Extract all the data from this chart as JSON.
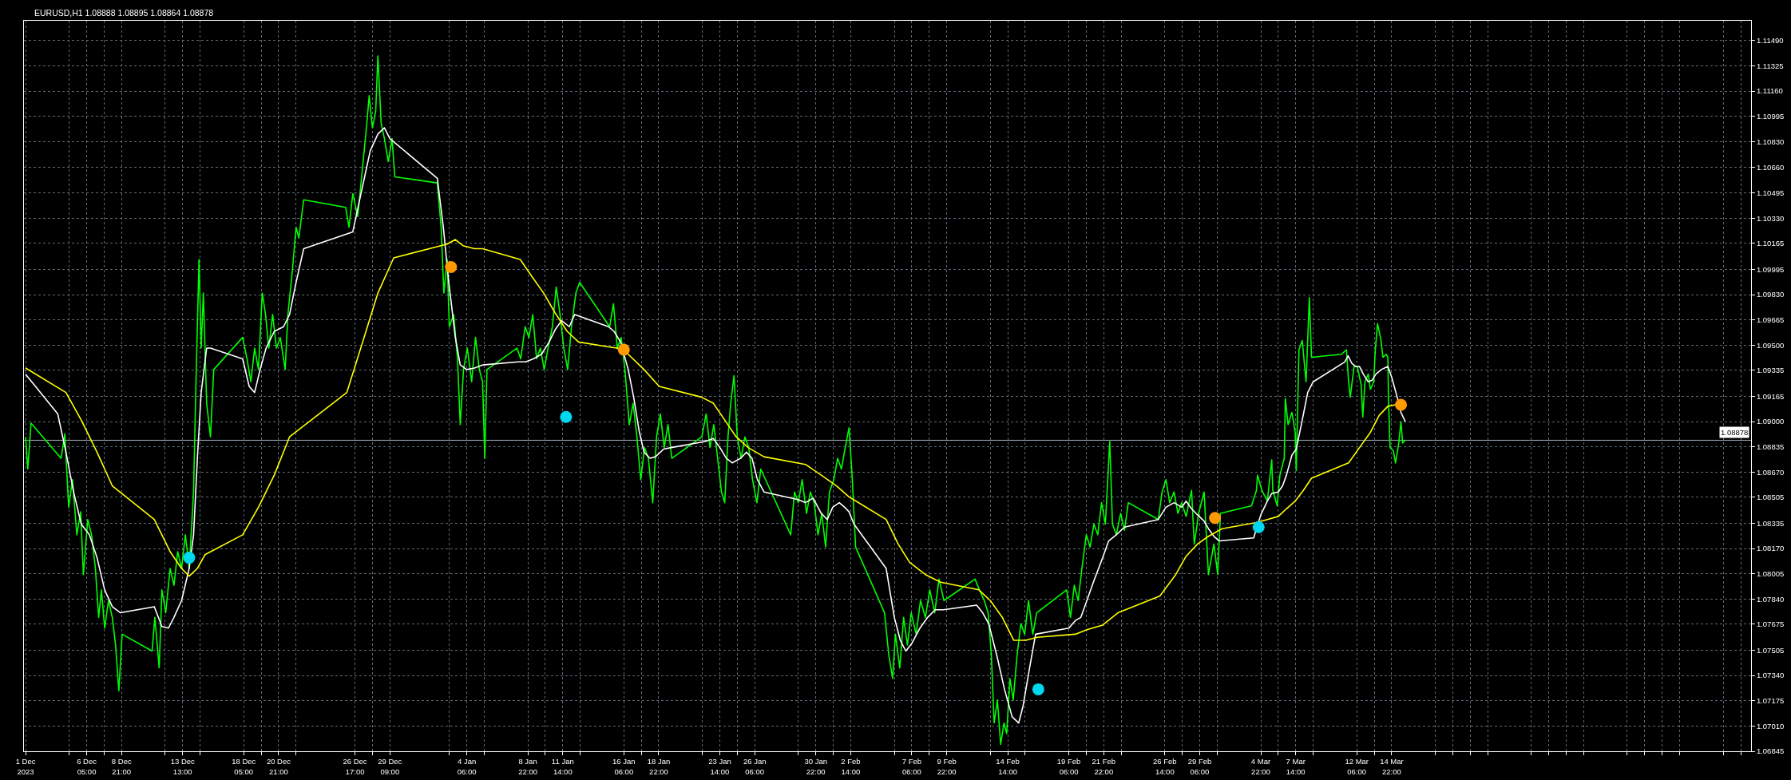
{
  "chart_data": {
    "type": "line",
    "title": "EURUSD,H1 1.08888 1.08895 1.08864 1.08878",
    "xlim": [
      "2023-12-01T10:00",
      "2024-04-11T09:00"
    ],
    "xticks": [
      {
        "value": "2023-12-01T13:00",
        "label": "1 Dec 2023"
      },
      {
        "value": "2023-12-04T21:00",
        "label": null
      },
      {
        "value": "2023-12-06T05:00",
        "label": "6 Dec 05:00"
      },
      {
        "value": "2023-12-07T13:00",
        "label": null
      },
      {
        "value": "2023-12-08T21:00",
        "label": "8 Dec 21:00"
      },
      {
        "value": "2023-12-12T05:00",
        "label": null
      },
      {
        "value": "2023-12-13T13:00",
        "label": "13 Dec 13:00"
      },
      {
        "value": "2023-12-14T21:00",
        "label": null
      },
      {
        "value": "2023-12-18T05:00",
        "label": "18 Dec 05:00"
      },
      {
        "value": "2023-12-19T13:00",
        "label": null
      },
      {
        "value": "2023-12-20T21:00",
        "label": "20 Dec 21:00"
      },
      {
        "value": "2023-12-22T05:00",
        "label": null
      },
      {
        "value": "2023-12-26T17:00",
        "label": "26 Dec 17:00"
      },
      {
        "value": "2023-12-28T01:00",
        "label": null
      },
      {
        "value": "2023-12-29T09:00",
        "label": "29 Dec 09:00"
      },
      {
        "value": "2024-01-02T22:00",
        "label": null
      },
      {
        "value": "2024-01-04T06:00",
        "label": "4 Jan 06:00"
      },
      {
        "value": "2024-01-05T14:00",
        "label": null
      },
      {
        "value": "2024-01-08T22:00",
        "label": "8 Jan 22:00"
      },
      {
        "value": "2024-01-10T06:00",
        "label": null
      },
      {
        "value": "2024-01-11T14:00",
        "label": "11 Jan 14:00"
      },
      {
        "value": "2024-01-12T22:00",
        "label": null
      },
      {
        "value": "2024-01-16T06:00",
        "label": "16 Jan 06:00"
      },
      {
        "value": "2024-01-17T14:00",
        "label": null
      },
      {
        "value": "2024-01-18T22:00",
        "label": "18 Jan 22:00"
      },
      {
        "value": "2024-01-22T06:00",
        "label": null
      },
      {
        "value": "2024-01-23T14:00",
        "label": "23 Jan 14:00"
      },
      {
        "value": "2024-01-24T22:00",
        "label": null
      },
      {
        "value": "2024-01-26T06:00",
        "label": "26 Jan 06:00"
      },
      {
        "value": "2024-01-29T14:00",
        "label": null
      },
      {
        "value": "2024-01-30T22:00",
        "label": "30 Jan 22:00"
      },
      {
        "value": "2024-02-01T06:00",
        "label": null
      },
      {
        "value": "2024-02-02T14:00",
        "label": "2 Feb 14:00"
      },
      {
        "value": "2024-02-05T22:00",
        "label": null
      },
      {
        "value": "2024-02-07T06:00",
        "label": "7 Feb 06:00"
      },
      {
        "value": "2024-02-08T14:00",
        "label": null
      },
      {
        "value": "2024-02-09T22:00",
        "label": "9 Feb 22:00"
      },
      {
        "value": "2024-02-13T06:00",
        "label": null
      },
      {
        "value": "2024-02-14T14:00",
        "label": "14 Feb 14:00"
      },
      {
        "value": "2024-02-15T22:00",
        "label": null
      },
      {
        "value": "2024-02-19T06:00",
        "label": "19 Feb 06:00"
      },
      {
        "value": "2024-02-20T14:00",
        "label": null
      },
      {
        "value": "2024-02-21T22:00",
        "label": "21 Feb 22:00"
      },
      {
        "value": "2024-02-23T06:00",
        "label": null
      },
      {
        "value": "2024-02-26T14:00",
        "label": "26 Feb 14:00"
      },
      {
        "value": "2024-02-27T22:00",
        "label": null
      },
      {
        "value": "2024-02-29T06:00",
        "label": "29 Feb 06:00"
      },
      {
        "value": "2024-03-01T14:00",
        "label": null
      },
      {
        "value": "2024-03-04T22:00",
        "label": "4 Mar 22:00"
      },
      {
        "value": "2024-03-06T06:00",
        "label": null
      },
      {
        "value": "2024-03-07T14:00",
        "label": "7 Mar 14:00"
      },
      {
        "value": "2024-03-08T22:00",
        "label": null
      },
      {
        "value": "2024-03-12T06:00",
        "label": "12 Mar 06:00"
      },
      {
        "value": "2024-03-13T14:00",
        "label": null
      },
      {
        "value": "2024-03-14T22:00",
        "label": "14 Mar 22:00"
      },
      {
        "value": "2024-03-18T06:00",
        "label": null
      },
      {
        "value": "2024-03-19T14:00",
        "label": null
      },
      {
        "value": "2024-03-20T22:00",
        "label": null
      },
      {
        "value": "2024-03-22T06:00",
        "label": null
      },
      {
        "value": "2024-03-25T14:00",
        "label": null
      },
      {
        "value": "2024-03-26T22:00",
        "label": null
      },
      {
        "value": "2024-03-28T06:00",
        "label": null
      },
      {
        "value": "2024-03-29T14:00",
        "label": null
      },
      {
        "value": "2024-04-01T22:00",
        "label": null
      },
      {
        "value": "2024-04-03T06:00",
        "label": null
      },
      {
        "value": "2024-04-04T14:00",
        "label": null
      },
      {
        "value": "2024-04-05T22:00",
        "label": null
      },
      {
        "value": "2024-04-09T06:00",
        "label": null
      },
      {
        "value": "2024-04-10T14:00",
        "label": null
      }
    ],
    "ylim": [
      1.06845,
      1.1162
    ],
    "yticks": [
      {
        "value": 1.06845,
        "label": "1.06845"
      },
      {
        "value": 1.0701,
        "label": "1.07010"
      },
      {
        "value": 1.07175,
        "label": "1.07175"
      },
      {
        "value": 1.0734,
        "label": "1.07340"
      },
      {
        "value": 1.07505,
        "label": "1.07505"
      },
      {
        "value": 1.07675,
        "label": "1.07675"
      },
      {
        "value": 1.0784,
        "label": "1.07840"
      },
      {
        "value": 1.08005,
        "label": "1.08005"
      },
      {
        "value": 1.0817,
        "label": "1.08170"
      },
      {
        "value": 1.08335,
        "label": "1.08335"
      },
      {
        "value": 1.08505,
        "label": "1.08505"
      },
      {
        "value": 1.0867,
        "label": "1.08670"
      },
      {
        "value": 1.08835,
        "label": "1.08835"
      },
      {
        "value": 1.09,
        "label": "1.09000"
      },
      {
        "value": 1.09165,
        "label": "1.09165"
      },
      {
        "value": 1.09335,
        "label": "1.09335"
      },
      {
        "value": 1.095,
        "label": "1.09500"
      },
      {
        "value": 1.09665,
        "label": "1.09665"
      },
      {
        "value": 1.0983,
        "label": "1.09830"
      },
      {
        "value": 1.09995,
        "label": "1.09995"
      },
      {
        "value": 1.10165,
        "label": "1.10165"
      },
      {
        "value": 1.1033,
        "label": "1.10330"
      },
      {
        "value": 1.10495,
        "label": "1.10495"
      },
      {
        "value": 1.1066,
        "label": "1.10660"
      },
      {
        "value": 1.1083,
        "label": "1.10830"
      },
      {
        "value": 1.10995,
        "label": "1.10995"
      },
      {
        "value": 1.1116,
        "label": "1.11160"
      },
      {
        "value": 1.11325,
        "label": "1.11325"
      },
      {
        "value": 1.1149,
        "label": "1.11490"
      }
    ],
    "grid": true,
    "ref_lines": [
      {
        "axis": "y",
        "value": 1.08878,
        "label": "1.08878",
        "color": "#a3b1c2"
      }
    ],
    "series": [
      {
        "color": "#00ff00",
        "x": [
          "2023-12-01T13:00",
          "2023-12-01T17:00",
          "2023-12-01T23:00",
          "2023-12-04T06:00",
          "2023-12-04T13:00",
          "2023-12-04T20:00",
          "2023-12-05T03:00",
          "2023-12-05T11:00",
          "2023-12-05T18:00",
          "2023-12-05T23:00",
          "2023-12-06T07:00",
          "2023-12-06T14:00",
          "2023-12-06T21:00",
          "2023-12-07T03:00",
          "2023-12-07T08:00",
          "2023-12-07T14:00",
          "2023-12-07T21:00",
          "2023-12-08T04:00",
          "2023-12-08T10:00",
          "2023-12-08T16:00",
          "2023-12-08T22:00",
          "2023-12-11T05:00",
          "2023-12-11T10:00",
          "2023-12-11T18:00",
          "2023-12-11T23:00",
          "2023-12-12T06:00",
          "2023-12-12T14:00",
          "2023-12-12T21:00",
          "2023-12-13T04:00",
          "2023-12-13T11:00",
          "2023-12-13T18:00",
          "2023-12-14T01:00",
          "2023-12-14T09:00",
          "2023-12-14T13:00",
          "2023-12-14T19:00",
          "2023-12-14T23:00",
          "2023-12-15T03:00",
          "2023-12-15T09:00",
          "2023-12-15T16:00",
          "2023-12-15T22:00",
          "2023-12-18T03:00",
          "2023-12-18T11:00",
          "2023-12-18T18:00",
          "2023-12-19T01:00",
          "2023-12-19T08:00",
          "2023-12-19T15:00",
          "2023-12-19T21:00",
          "2023-12-20T03:00",
          "2023-12-20T10:00",
          "2023-12-20T17:00",
          "2023-12-21T00:00",
          "2023-12-21T09:00",
          "2023-12-21T14:00",
          "2023-12-21T22:00",
          "2023-12-22T05:00",
          "2023-12-22T10:00",
          "2023-12-22T19:00",
          "2023-12-26T00:00",
          "2023-12-26T06:00",
          "2023-12-26T13:00",
          "2023-12-26T22:00",
          "2023-12-27T06:00",
          "2023-12-27T14:00",
          "2023-12-27T19:00",
          "2023-12-28T01:00",
          "2023-12-28T07:00",
          "2023-12-28T11:00",
          "2023-12-28T17:00",
          "2023-12-28T23:00",
          "2023-12-29T06:00",
          "2023-12-29T13:00",
          "2023-12-29T18:00",
          "2024-01-02T00:00",
          "2024-01-02T07:00",
          "2024-01-02T12:00",
          "2024-01-02T18:00",
          "2024-01-02T22:00",
          "2024-01-03T06:00",
          "2024-01-03T13:00",
          "2024-01-03T18:00",
          "2024-01-04T00:00",
          "2024-01-04T07:00",
          "2024-01-04T15:00",
          "2024-01-04T22:00",
          "2024-01-05T05:00",
          "2024-01-05T11:00",
          "2024-01-05T15:00",
          "2024-01-05T19:00",
          "2024-01-08T02:00",
          "2024-01-08T09:00",
          "2024-01-08T17:00",
          "2024-01-09T00:00",
          "2024-01-09T07:00",
          "2024-01-09T14:00",
          "2024-01-09T21:00",
          "2024-01-10T04:00",
          "2024-01-10T11:00",
          "2024-01-10T19:00",
          "2024-01-11T02:00",
          "2024-01-11T09:00",
          "2024-01-11T16:00",
          "2024-01-11T23:00",
          "2024-01-12T06:00",
          "2024-01-12T14:00",
          "2024-01-12T21:00",
          "2024-01-15T04:00",
          "2024-01-15T11:00",
          "2024-01-15T18:00",
          "2024-01-16T01:00",
          "2024-01-16T08:00",
          "2024-01-16T16:00",
          "2024-01-16T23:00",
          "2024-01-17T06:00",
          "2024-01-17T13:00",
          "2024-01-17T20:00",
          "2024-01-18T03:00",
          "2024-01-18T11:00",
          "2024-01-18T18:00",
          "2024-01-19T01:00",
          "2024-01-19T08:00",
          "2024-01-19T15:00",
          "2024-01-19T22:00",
          "2024-01-22T05:00",
          "2024-01-22T13:00",
          "2024-01-22T20:00",
          "2024-01-23T03:00",
          "2024-01-23T10:00",
          "2024-01-23T17:00",
          "2024-01-23T23:00",
          "2024-01-24T05:00",
          "2024-01-24T10:00",
          "2024-01-24T16:00",
          "2024-01-24T22:00",
          "2024-01-25T05:00",
          "2024-01-25T12:00",
          "2024-01-25T19:00",
          "2024-01-26T02:00",
          "2024-01-26T10:00",
          "2024-01-26T17:00",
          "2024-01-29T00:00",
          "2024-01-29T07:00",
          "2024-01-29T14:00",
          "2024-01-29T21:00",
          "2024-01-30T05:00",
          "2024-01-30T12:00",
          "2024-01-30T19:00",
          "2024-01-31T02:00",
          "2024-01-31T09:00",
          "2024-01-31T16:00",
          "2024-01-31T23:00",
          "2024-02-01T07:00",
          "2024-02-01T14:00",
          "2024-02-01T21:00",
          "2024-02-02T04:00",
          "2024-02-02T11:00",
          "2024-02-02T17:00",
          "2024-02-02T23:00",
          "2024-02-05T04:00",
          "2024-02-05T12:00",
          "2024-02-05T19:00",
          "2024-02-06T00:00",
          "2024-02-06T08:00",
          "2024-02-06T15:00",
          "2024-02-06T22:00",
          "2024-02-07T05:00",
          "2024-02-07T14:00",
          "2024-02-07T22:00",
          "2024-02-08T07:00",
          "2024-02-08T15:00",
          "2024-02-09T00:00",
          "2024-02-09T08:00",
          "2024-02-09T17:00",
          "2024-02-12T02:00",
          "2024-02-12T10:00",
          "2024-02-12T19:00",
          "2024-02-13T02:00",
          "2024-02-13T08:00",
          "2024-02-13T13:00",
          "2024-02-13T19:00",
          "2024-02-14T01:00",
          "2024-02-14T07:00",
          "2024-02-14T12:00",
          "2024-02-14T18:00",
          "2024-02-15T00:00",
          "2024-02-15T07:00",
          "2024-02-15T14:00",
          "2024-02-15T21:00",
          "2024-02-16T04:00",
          "2024-02-16T12:00",
          "2024-02-16T19:00",
          "2024-02-19T02:00",
          "2024-02-19T09:00",
          "2024-02-19T16:00",
          "2024-02-19T23:00",
          "2024-02-20T06:00",
          "2024-02-20T14:00",
          "2024-02-20T21:00",
          "2024-02-21T04:00",
          "2024-02-21T11:00",
          "2024-02-21T18:00",
          "2024-02-22T01:00",
          "2024-02-22T09:00",
          "2024-02-22T14:00",
          "2024-02-22T21:00",
          "2024-02-23T05:00",
          "2024-02-23T12:00",
          "2024-02-23T19:00",
          "2024-02-26T02:00",
          "2024-02-26T09:00",
          "2024-02-26T16:00",
          "2024-02-26T23:00",
          "2024-02-27T07:00",
          "2024-02-27T14:00",
          "2024-02-27T21:00",
          "2024-02-28T05:00",
          "2024-02-28T15:00",
          "2024-02-28T20:00",
          "2024-02-29T04:00",
          "2024-02-29T14:00",
          "2024-02-29T22:00",
          "2024-03-01T08:00",
          "2024-03-01T15:00",
          "2024-03-01T20:00",
          "2024-03-04T05:00",
          "2024-03-04T14:00",
          "2024-03-04T16:00",
          "2024-03-05T00:00",
          "2024-03-05T10:00",
          "2024-03-05T18:00",
          "2024-03-05T20:00",
          "2024-03-06T04:00",
          "2024-03-06T09:00",
          "2024-03-06T17:00",
          "2024-03-06T19:00",
          "2024-03-07T00:00",
          "2024-03-07T07:00",
          "2024-03-07T13:00",
          "2024-03-07T15:00",
          "2024-03-07T20:00",
          "2024-03-08T02:00",
          "2024-03-08T09:00",
          "2024-03-08T15:00",
          "2024-03-08T19:00",
          "2024-03-11T02:00",
          "2024-03-11T11:00",
          "2024-03-11T15:00",
          "2024-03-11T18:00",
          "2024-03-12T01:00",
          "2024-03-12T07:00",
          "2024-03-12T14:00",
          "2024-03-12T17:00",
          "2024-03-12T21:00",
          "2024-03-13T03:00",
          "2024-03-13T07:00",
          "2024-03-13T13:00",
          "2024-03-13T16:00",
          "2024-03-13T20:00",
          "2024-03-14T02:00",
          "2024-03-14T06:00",
          "2024-03-14T12:00",
          "2024-03-14T15:00",
          "2024-03-14T16:00",
          "2024-03-14T19:00",
          "2024-03-15T01:00",
          "2024-03-15T05:00",
          "2024-03-15T11:00",
          "2024-03-15T15:00",
          "2024-03-15T18:00",
          "2024-03-15T23:00"
        ],
        "values": [
          1.089,
          1.0869,
          1.0899,
          1.0876,
          1.0892,
          1.0844,
          1.0862,
          1.0826,
          1.0841,
          1.08,
          1.0836,
          1.0826,
          1.0804,
          1.0772,
          1.079,
          1.0765,
          1.0783,
          1.0772,
          1.0754,
          1.0724,
          1.0761,
          1.075,
          1.0772,
          1.0739,
          1.079,
          1.0775,
          1.0804,
          1.0793,
          1.0815,
          1.0804,
          1.0826,
          1.0804,
          1.0854,
          1.0919,
          1.1006,
          1.0948,
          1.0984,
          1.0912,
          1.089,
          1.0934,
          1.0955,
          1.0941,
          1.0926,
          1.0948,
          1.0934,
          1.0984,
          1.097,
          1.0948,
          1.097,
          1.0948,
          1.0955,
          1.0934,
          1.097,
          1.0998,
          1.1027,
          1.102,
          1.1045,
          1.104,
          1.1027,
          1.1049,
          1.1034,
          1.1063,
          1.1092,
          1.1113,
          1.1092,
          1.1103,
          1.1139,
          1.1095,
          1.1085,
          1.107,
          1.1085,
          1.106,
          1.1056,
          1.1027,
          1.0984,
          1.1006,
          1.0962,
          1.097,
          1.0941,
          1.0898,
          1.0934,
          1.0948,
          1.0926,
          1.0955,
          1.0934,
          1.0926,
          1.0876,
          1.0934,
          1.0948,
          1.0941,
          1.0962,
          1.0955,
          1.097,
          1.0941,
          1.0948,
          1.0934,
          1.0948,
          1.0962,
          1.0988,
          1.097,
          1.0948,
          1.0934,
          1.0962,
          1.0984,
          1.0991,
          1.0962,
          1.0977,
          1.0948,
          1.0955,
          1.0934,
          1.0898,
          1.0912,
          1.089,
          1.0862,
          1.0883,
          1.0876,
          1.0847,
          1.089,
          1.0905,
          1.0883,
          1.0898,
          1.0876,
          1.089,
          1.0905,
          1.0883,
          1.0898,
          1.0876,
          1.0854,
          1.0847,
          1.089,
          1.0912,
          1.093,
          1.089,
          1.0876,
          1.089,
          1.0883,
          1.0862,
          1.0847,
          1.0869,
          1.0826,
          1.0854,
          1.0847,
          1.0862,
          1.084,
          1.0854,
          1.0847,
          1.0826,
          1.084,
          1.0818,
          1.0854,
          1.0862,
          1.0876,
          1.0869,
          1.0883,
          1.0896,
          1.0862,
          1.0818,
          1.0775,
          1.0747,
          1.0732,
          1.0761,
          1.0739,
          1.0772,
          1.0754,
          1.0775,
          1.0761,
          1.0783,
          1.0772,
          1.079,
          1.0775,
          1.0797,
          1.0783,
          1.0797,
          1.079,
          1.0783,
          1.0775,
          1.0747,
          1.0703,
          1.0718,
          1.0689,
          1.0703,
          1.0696,
          1.0732,
          1.0718,
          1.0747,
          1.0768,
          1.0761,
          1.0783,
          1.0761,
          1.0775,
          1.079,
          1.0772,
          1.0793,
          1.0783,
          1.0804,
          1.0826,
          1.0818,
          1.0833,
          1.0826,
          1.0847,
          1.0833,
          1.0887,
          1.0833,
          1.0826,
          1.084,
          1.0829,
          1.0847,
          1.0836,
          1.0854,
          1.0862,
          1.0847,
          1.0854,
          1.084,
          1.0847,
          1.0838,
          1.0855,
          1.082,
          1.084,
          1.0854,
          1.08,
          1.082,
          1.08,
          1.084,
          1.0845,
          1.0855,
          1.0865,
          1.0855,
          1.0848,
          1.0875,
          1.0855,
          1.0845,
          1.0865,
          1.0876,
          1.0915,
          1.0898,
          1.0906,
          1.0893,
          1.0868,
          1.0947,
          1.0953,
          1.0926,
          1.0981,
          1.0942,
          1.0944,
          1.0947,
          1.0926,
          1.0916,
          1.0936,
          1.0936,
          1.0924,
          1.0903,
          1.0926,
          1.0931,
          1.0921,
          1.0926,
          1.0947,
          1.0964,
          1.0954,
          1.0942,
          1.0944,
          1.0942,
          1.0916,
          1.0883,
          1.0881,
          1.0873,
          1.0886,
          1.09,
          1.0886,
          1.0888
        ]
      },
      {
        "color": "#ffffff",
        "x": [
          "2023-12-01T13:00",
          "2023-12-04T00:00",
          "2023-12-04T15:00",
          "2023-12-05T05:00",
          "2023-12-05T19:00",
          "2023-12-06T10:00",
          "2023-12-07T00:00",
          "2023-12-07T14:00",
          "2023-12-08T04:00",
          "2023-12-08T19:00",
          "2023-12-11T09:00",
          "2023-12-11T23:00",
          "2023-12-12T11:00",
          "2023-12-12T21:00",
          "2023-12-13T11:00",
          "2023-12-14T01:00",
          "2023-12-14T09:00",
          "2023-12-14T16:00",
          "2023-12-14T23:00",
          "2023-12-15T09:00",
          "2023-12-15T16:00",
          "2023-12-18T03:00",
          "2023-12-18T15:00",
          "2023-12-19T01:00",
          "2023-12-19T11:00",
          "2023-12-19T22:00",
          "2023-12-20T13:00",
          "2023-12-21T06:00",
          "2023-12-21T17:00",
          "2023-12-22T05:00",
          "2023-12-22T19:00",
          "2023-12-26T13:00",
          "2023-12-27T04:00",
          "2023-12-27T21:00",
          "2023-12-28T11:00",
          "2023-12-28T23:00",
          "2023-12-29T09:00",
          "2024-01-02T00:00",
          "2024-01-02T11:00",
          "2024-01-02T21:00",
          "2024-01-03T09:00",
          "2024-01-03T18:00",
          "2024-01-04T06:00",
          "2024-01-04T20:00",
          "2024-01-05T11:00",
          "2024-01-08T04:00",
          "2024-01-08T18:00",
          "2024-01-09T08:00",
          "2024-01-09T23:00",
          "2024-01-10T13:00",
          "2024-01-11T00:00",
          "2024-01-11T12:00",
          "2024-01-12T02:00",
          "2024-01-12T12:00",
          "2024-01-15T02:00",
          "2024-01-15T12:00",
          "2024-01-16T00:00",
          "2024-01-16T14:00",
          "2024-01-17T00:00",
          "2024-01-17T10:00",
          "2024-01-17T19:00",
          "2024-01-18T06:00",
          "2024-01-18T16:00",
          "2024-01-19T07:00",
          "2024-01-19T21:00",
          "2024-01-22T11:00",
          "2024-01-23T02:00",
          "2024-01-23T16:00",
          "2024-01-24T02:00",
          "2024-01-24T13:00",
          "2024-01-25T04:00",
          "2024-01-25T15:00",
          "2024-01-26T01:00",
          "2024-01-26T11:00",
          "2024-01-26T23:00",
          "2024-01-29T13:00",
          "2024-01-30T03:00",
          "2024-01-30T17:00",
          "2024-01-31T08:00",
          "2024-01-31T19:00",
          "2024-02-01T05:00",
          "2024-02-01T17:00",
          "2024-02-02T03:00",
          "2024-02-02T11:00",
          "2024-02-02T20:00",
          "2024-02-05T07:00",
          "2024-02-05T22:00",
          "2024-02-06T09:00",
          "2024-02-06T19:00",
          "2024-02-07T06:00",
          "2024-02-07T21:00",
          "2024-02-08T11:00",
          "2024-02-09T01:00",
          "2024-02-09T16:00",
          "2024-02-12T05:00",
          "2024-02-12T16:00",
          "2024-02-13T03:00",
          "2024-02-13T18:00",
          "2024-02-14T08:00",
          "2024-02-14T22:00",
          "2024-02-15T10:00",
          "2024-02-15T18:00",
          "2024-02-16T06:00",
          "2024-02-16T17:00",
          "2024-02-19T06:00",
          "2024-02-19T18:00",
          "2024-02-20T04:00",
          "2024-02-20T15:00",
          "2024-02-21T05:00",
          "2024-02-21T20:00",
          "2024-02-22T07:00",
          "2024-02-22T21:00",
          "2024-02-23T12:00",
          "2024-02-26T02:00",
          "2024-02-26T16:00",
          "2024-02-27T07:00",
          "2024-02-27T21:00",
          "2024-02-28T05:00",
          "2024-02-28T15:00",
          "2024-02-29T02:00",
          "2024-02-29T14:00",
          "2024-02-29T22:00",
          "2024-03-01T08:00",
          "2024-03-01T18:00",
          "2024-03-04T09:00",
          "2024-03-04T14:00",
          "2024-03-04T22:00",
          "2024-03-05T10:00",
          "2024-03-05T18:00",
          "2024-03-06T06:00",
          "2024-03-06T14:00",
          "2024-03-06T21:00",
          "2024-03-07T07:00",
          "2024-03-07T15:00",
          "2024-03-08T02:00",
          "2024-03-08T12:00",
          "2024-03-08T22:00",
          "2024-03-11T08:00",
          "2024-03-11T14:00",
          "2024-03-11T21:00",
          "2024-03-12T04:00",
          "2024-03-12T11:00",
          "2024-03-12T18:00",
          "2024-03-13T03:00",
          "2024-03-13T10:00",
          "2024-03-13T17:00",
          "2024-03-14T03:00",
          "2024-03-14T15:00",
          "2024-03-14T22:00",
          "2024-03-15T08:00",
          "2024-03-15T15:00",
          "2024-03-15T23:00"
        ],
        "values": [
          1.0931,
          1.0905,
          1.088,
          1.0854,
          1.0833,
          1.0826,
          1.0811,
          1.079,
          1.0779,
          1.0775,
          1.0779,
          1.0766,
          1.0765,
          1.0772,
          1.0783,
          1.0804,
          1.0826,
          1.0876,
          1.0919,
          1.0948,
          1.0948,
          1.0941,
          1.0923,
          1.0919,
          1.0934,
          1.0948,
          1.0959,
          1.0962,
          1.097,
          1.0991,
          1.1013,
          1.1024,
          1.1049,
          1.1077,
          1.1088,
          1.1092,
          1.1085,
          1.1059,
          1.1027,
          1.0991,
          1.0955,
          1.0937,
          1.0934,
          1.0935,
          1.0937,
          1.0939,
          1.0939,
          1.0941,
          1.0944,
          1.0952,
          1.096,
          1.0966,
          1.0962,
          1.097,
          1.0962,
          1.0959,
          1.0952,
          1.0934,
          1.0916,
          1.0894,
          1.088,
          1.0876,
          1.0877,
          1.0882,
          1.0883,
          1.0887,
          1.0889,
          1.0882,
          1.0876,
          1.0873,
          1.0876,
          1.088,
          1.0876,
          1.0862,
          1.0854,
          1.0849,
          1.0847,
          1.085,
          1.084,
          1.0836,
          1.0844,
          1.0847,
          1.0844,
          1.0841,
          1.0833,
          1.0804,
          1.0772,
          1.0757,
          1.075,
          1.0755,
          1.0765,
          1.0772,
          1.0777,
          1.0777,
          1.078,
          1.0775,
          1.0768,
          1.0747,
          1.0725,
          1.0707,
          1.0703,
          1.0714,
          1.0739,
          1.0761,
          1.0765,
          1.077,
          1.0772,
          1.0783,
          1.0797,
          1.0811,
          1.0822,
          1.0826,
          1.0831,
          1.0836,
          1.0844,
          1.0847,
          1.0844,
          1.0848,
          1.0843,
          1.0839,
          1.0835,
          1.083,
          1.0825,
          1.0822,
          1.0824,
          1.083,
          1.0839,
          1.0848,
          1.0853,
          1.0854,
          1.0858,
          1.0865,
          1.0878,
          1.0882,
          1.0901,
          1.0919,
          1.0926,
          1.0939,
          1.0943,
          1.0938,
          1.0936,
          1.0936,
          1.0931,
          1.0926,
          1.0927,
          1.0931,
          1.0934,
          1.0936,
          1.0929,
          1.0916,
          1.0906,
          1.09
        ]
      },
      {
        "color": "#ffff00",
        "x": [
          "2023-12-01T13:00",
          "2023-12-04T15:00",
          "2023-12-05T19:00",
          "2023-12-07T00:00",
          "2023-12-08T04:00",
          "2023-12-11T09:00",
          "2023-12-12T14:00",
          "2023-12-13T11:00",
          "2023-12-14T01:00",
          "2023-12-14T16:00",
          "2023-12-15T06:00",
          "2023-12-18T03:00",
          "2023-12-19T08:00",
          "2023-12-20T13:00",
          "2023-12-21T17:00",
          "2023-12-26T02:00",
          "2023-12-27T07:00",
          "2023-12-28T11:00",
          "2023-12-29T16:00",
          "2024-01-02T18:00",
          "2024-01-03T09:00",
          "2024-01-03T23:00",
          "2024-01-04T20:00",
          "2024-01-05T11:00",
          "2024-01-08T08:00",
          "2024-01-09T05:00",
          "2024-01-10T03:00",
          "2024-01-11T00:00",
          "2024-01-11T22:00",
          "2024-01-12T19:00",
          "2024-01-15T17:00",
          "2024-01-16T14:00",
          "2024-01-17T19:00",
          "2024-01-18T23:00",
          "2024-01-22T04:00",
          "2024-01-23T02:00",
          "2024-01-23T23:00",
          "2024-01-24T20:00",
          "2024-01-25T18:00",
          "2024-01-26T23:00",
          "2024-01-30T03:00",
          "2024-01-31T08:00",
          "2024-02-01T12:00",
          "2024-02-02T10:00",
          "2024-02-05T07:00",
          "2024-02-06T05:00",
          "2024-02-07T02:00",
          "2024-02-08T07:00",
          "2024-02-09T11:00",
          "2024-02-12T09:00",
          "2024-02-13T06:00",
          "2024-02-14T04:00",
          "2024-02-15T01:00",
          "2024-02-15T23:00",
          "2024-02-16T20:00",
          "2024-02-19T18:00",
          "2024-02-20T15:00",
          "2024-02-21T20:00",
          "2024-02-23T00:00",
          "2024-02-26T05:00",
          "2024-02-27T10:00",
          "2024-02-28T05:00",
          "2024-02-29T02:00",
          "2024-02-29T22:00",
          "2024-03-01T23:00",
          "2024-03-04T14:00",
          "2024-03-05T10:00",
          "2024-03-06T06:00",
          "2024-03-06T21:00",
          "2024-03-07T13:00",
          "2024-03-08T04:00",
          "2024-03-08T19:00",
          "2024-03-11T15:00",
          "2024-03-12T11:00",
          "2024-03-13T07:00",
          "2024-03-13T23:00",
          "2024-03-14T15:00",
          "2024-03-15T05:00",
          "2024-03-15T15:00"
        ],
        "values": [
          1.0935,
          1.0919,
          1.0901,
          1.088,
          1.0858,
          1.0836,
          1.0815,
          1.0804,
          1.0799,
          1.0804,
          1.0813,
          1.0826,
          1.0844,
          1.0865,
          1.089,
          1.0919,
          1.0952,
          1.0984,
          1.1007,
          1.1016,
          1.1019,
          1.1015,
          1.1013,
          1.1013,
          1.1006,
          1.0995,
          1.0984,
          1.0971,
          1.0959,
          1.0952,
          1.0948,
          1.0944,
          1.0934,
          1.0923,
          1.0916,
          1.0912,
          1.0901,
          1.089,
          1.0883,
          1.0877,
          1.0872,
          1.0865,
          1.0858,
          1.0851,
          1.0836,
          1.082,
          1.0808,
          1.08,
          1.0795,
          1.079,
          1.0783,
          1.0772,
          1.0757,
          1.0757,
          1.0759,
          1.0761,
          1.0764,
          1.0767,
          1.0775,
          1.0786,
          1.08,
          1.0812,
          1.082,
          1.0825,
          1.083,
          1.0834,
          1.0836,
          1.0838,
          1.0843,
          1.0848,
          1.0855,
          1.0863,
          1.0873,
          1.0883,
          1.0893,
          1.0904,
          1.091,
          1.0911,
          1.0911
        ]
      },
      {
        "type": "scatter",
        "marker": "circle",
        "color": "#00d8f0",
        "x": [
          "2023-12-14T01:00",
          "2024-01-11T20:00",
          "2024-02-16T22:00",
          "2024-03-04T18:00"
        ],
        "values": [
          1.0811,
          1.0903,
          1.0725,
          1.0831
        ]
      },
      {
        "type": "scatter",
        "marker": "circle",
        "color": "#ff9a00",
        "x": [
          "2024-01-03T01:00",
          "2024-01-16T06:00",
          "2024-03-01T10:00",
          "2024-03-15T15:00"
        ],
        "values": [
          1.1001,
          1.0947,
          1.0837,
          1.0911
        ]
      }
    ]
  }
}
